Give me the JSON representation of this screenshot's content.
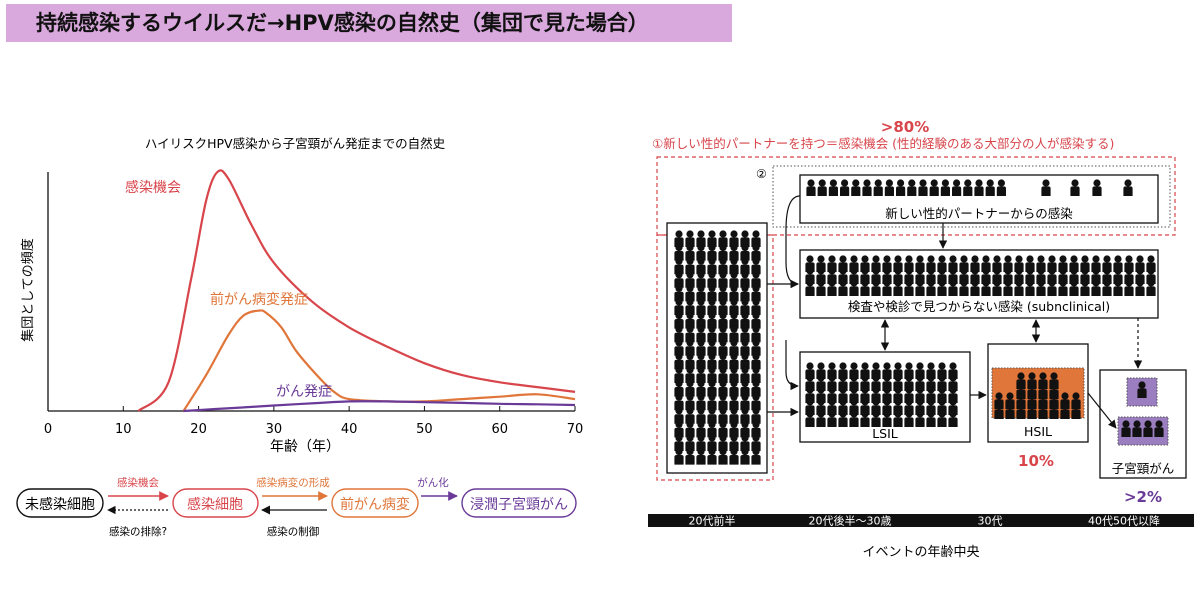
{
  "slide_title": "持続感染するウイルスだ→HPV感染の自然史（集団で見た場合）",
  "colors": {
    "title_bg": "#d9a8dc",
    "infection": "#d8454b",
    "precancer": "#e0763a",
    "cancer": "#6a3a98",
    "hsil_fill": "#e0763a",
    "cancer_fill": "#9b7ec0"
  },
  "chart_data": {
    "type": "line",
    "title": "ハイリスクHPV感染から子宮頸がん発症までの自然史",
    "xlabel": "年齢（年）",
    "ylabel": "集団としての頻度",
    "xlim": [
      0,
      70
    ],
    "ylim": [
      0,
      100
    ],
    "xticks": [
      "0",
      "10",
      "20",
      "30",
      "40",
      "50",
      "60",
      "70"
    ],
    "series": [
      {
        "name": "感染機会",
        "x": [
          12,
          16,
          19,
          21,
          22.5,
          24,
          27,
          30,
          35,
          40,
          45,
          50,
          55,
          60,
          65,
          70
        ],
        "y": [
          0,
          12,
          55,
          88,
          100,
          97,
          78,
          62,
          46,
          35,
          27,
          20,
          15,
          12,
          10,
          8
        ]
      },
      {
        "name": "前がん病変発症",
        "x": [
          18,
          21,
          24,
          26,
          28,
          29,
          31,
          33,
          36,
          38,
          40,
          45,
          50,
          55,
          60,
          65,
          70
        ],
        "y": [
          0,
          15,
          32,
          40,
          42,
          41,
          35,
          25,
          14,
          8,
          5,
          4,
          4,
          5,
          6,
          7,
          5
        ]
      },
      {
        "name": "がん発症",
        "x": [
          18,
          22,
          26,
          30,
          35,
          40,
          45,
          50,
          55,
          60,
          65,
          70
        ],
        "y": [
          0,
          0.8,
          1.5,
          2.3,
          3.2,
          4,
          4,
          3.7,
          3.4,
          3,
          2.8,
          2.5
        ]
      }
    ]
  },
  "flow": {
    "state1": "未感染細胞",
    "state2": "感染細胞",
    "state3": "前がん病変",
    "state4": "浸潤子宮頸がん",
    "arrow1_label": "感染機会",
    "arrow2_label": "感染病変の形成",
    "arrow3_label": "がん化",
    "back1_label": "感染の排除?",
    "back2_label": "感染の制御"
  },
  "right": {
    "pct_top": ">80%",
    "headline": "①新しい性的パートナーを持つ＝感染機会 (性的経験のある大部分の人が感染する)",
    "marker2": "②",
    "new_partner": "新しい性的パートナーからの感染",
    "subclinical": "検査や検診で見つからない感染 (subnclinical)",
    "lsil": "LSIL",
    "hsil": "HSIL",
    "cancer": "子宮頸がん",
    "pct_hsil": "10%",
    "pct_cancer": ">2%",
    "timeline": [
      "20代前半",
      "20代後半〜30歳",
      "30代",
      "40代50代以降"
    ],
    "timeline_caption": "イベントの年齢中央"
  }
}
